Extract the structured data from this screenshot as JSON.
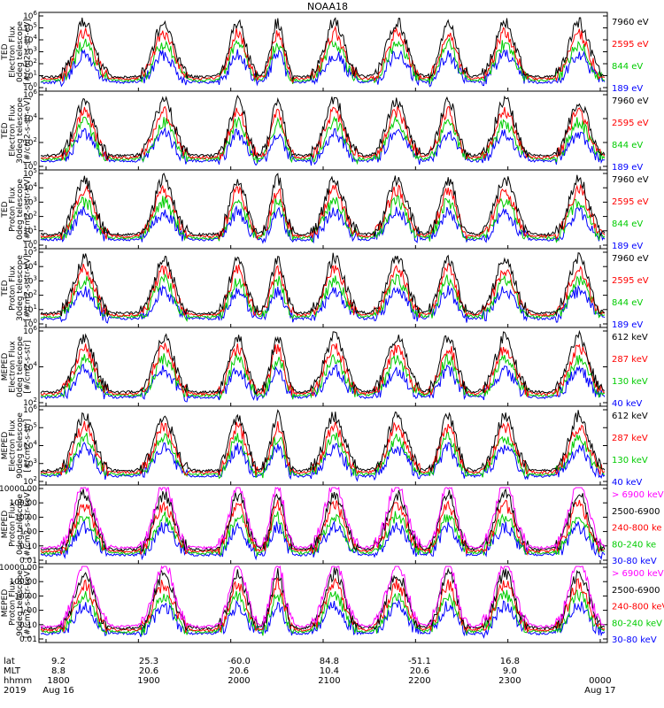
{
  "title": "NOAA18",
  "colors": {
    "black": "#000000",
    "red": "#ff0000",
    "green": "#00cc00",
    "blue": "#0000ff",
    "magenta": "#ff00ff"
  },
  "chart_data": [
    {
      "type": "line",
      "instrument": "TED",
      "ylabel": [
        "TED",
        "Electron Flux",
        "0deg telescope",
        "[#/cm2-s-str-eV]"
      ],
      "yscale": "log",
      "ylim": [
        1,
        1000000
      ],
      "yticks": [
        "10^0",
        "10^1",
        "10^2",
        "10^3",
        "10^4",
        "10^5",
        "10^6"
      ],
      "legend": [
        {
          "label": "7960 eV",
          "color": "black"
        },
        {
          "label": "2595 eV",
          "color": "red"
        },
        {
          "label": "844 eV",
          "color": "green"
        },
        {
          "label": "189 eV",
          "color": "blue"
        }
      ]
    },
    {
      "type": "line",
      "instrument": "TED",
      "ylabel": [
        "TED",
        "Electron Flux",
        "30deg telescope",
        "[#/cm2-s-str-eV]"
      ],
      "yscale": "log",
      "ylim": [
        1,
        1000000
      ],
      "yticks": [
        "10^0",
        "10^2",
        "10^4",
        "10^6"
      ],
      "legend": [
        {
          "label": "7960 eV",
          "color": "black"
        },
        {
          "label": "2595 eV",
          "color": "red"
        },
        {
          "label": "844 eV",
          "color": "green"
        },
        {
          "label": "189 eV",
          "color": "blue"
        }
      ]
    },
    {
      "type": "line",
      "instrument": "TED",
      "ylabel": [
        "TED",
        "Proton Flux",
        "0deg telescope",
        "[#/cm2-s-str-eV]"
      ],
      "yscale": "log",
      "ylim": [
        1,
        100000
      ],
      "yticks": [
        "10^0",
        "10^1",
        "10^2",
        "10^3",
        "10^4",
        "10^5"
      ],
      "legend": [
        {
          "label": "7960 eV",
          "color": "black"
        },
        {
          "label": "2595 eV",
          "color": "red"
        },
        {
          "label": "844 eV",
          "color": "green"
        },
        {
          "label": "189 eV",
          "color": "blue"
        }
      ]
    },
    {
      "type": "line",
      "instrument": "TED",
      "ylabel": [
        "TED",
        "Proton Flux",
        "30deg telescope",
        "[#/cm2-s-str-eV]"
      ],
      "yscale": "log",
      "ylim": [
        1,
        100000
      ],
      "yticks": [
        "10^0",
        "10^1",
        "10^2",
        "10^3",
        "10^4",
        "10^5"
      ],
      "legend": [
        {
          "label": "7960 eV",
          "color": "black"
        },
        {
          "label": "2595 eV",
          "color": "red"
        },
        {
          "label": "844 eV",
          "color": "green"
        },
        {
          "label": "189 eV",
          "color": "blue"
        }
      ]
    },
    {
      "type": "line",
      "instrument": "MEPED",
      "ylabel": [
        "MEPED",
        "Electron Flux",
        "0deg telescope",
        "[#/cm2-s-str]"
      ],
      "yscale": "log",
      "ylim": [
        100,
        1000000
      ],
      "yticks": [
        "10^2",
        "10^4",
        "10^6"
      ],
      "legend": [
        {
          "label": "612 keV",
          "color": "black"
        },
        {
          "label": "287 keV",
          "color": "red"
        },
        {
          "label": "130 keV",
          "color": "green"
        },
        {
          "label": "40 keV",
          "color": "blue"
        }
      ]
    },
    {
      "type": "line",
      "instrument": "MEPED",
      "ylabel": [
        "MEPED",
        "Electron Flux",
        "90deg telescope",
        "[#/cm2-s-str]"
      ],
      "yscale": "log",
      "ylim": [
        100,
        1000000
      ],
      "yticks": [
        "10^2",
        "10^3",
        "10^4",
        "10^5",
        "10^6"
      ],
      "legend": [
        {
          "label": "612 keV",
          "color": "black"
        },
        {
          "label": "287 keV",
          "color": "red"
        },
        {
          "label": "130 keV",
          "color": "green"
        },
        {
          "label": "40 keV",
          "color": "blue"
        }
      ]
    },
    {
      "type": "line",
      "instrument": "MEPED",
      "ylabel": [
        "MEPED",
        "Proton Flux",
        "0deg telescope",
        "[#/cm2-s-str-keV]"
      ],
      "yscale": "log",
      "ylim": [
        0.01,
        10000
      ],
      "yticks": [
        "10000.00",
        "100.00",
        "10.00",
        "1.00",
        "0.10",
        "0.01"
      ],
      "legend": [
        {
          "label": "> 6900 keV",
          "color": "magenta"
        },
        {
          "label": "2500-6900",
          "color": "black"
        },
        {
          "label": "240-800 ke",
          "color": "red"
        },
        {
          "label": "80-240 ke",
          "color": "green"
        },
        {
          "label": "30-80 keV",
          "color": "blue"
        }
      ]
    },
    {
      "type": "line",
      "instrument": "MEPED",
      "ylabel": [
        "MEPED",
        "Proton Flux",
        "90deg telescope",
        "[#/cm2-s-str-keV]"
      ],
      "yscale": "log",
      "ylim": [
        0.01,
        10000
      ],
      "yticks": [
        "10000.00",
        "100.00",
        "10.00",
        "1.00",
        "0.10",
        "0.01"
      ],
      "legend": [
        {
          "label": "> 6900 keV",
          "color": "magenta"
        },
        {
          "label": "2500-6900",
          "color": "black"
        },
        {
          "label": "240-800 keV",
          "color": "red"
        },
        {
          "label": "80-240 keV",
          "color": "green"
        },
        {
          "label": "30-80 keV",
          "color": "blue"
        }
      ]
    }
  ],
  "x_axis": {
    "rows": [
      {
        "name": "lat",
        "values": [
          "9.2",
          "25.3",
          "-60.0",
          "84.8",
          "-51.1",
          "16.8",
          ""
        ]
      },
      {
        "name": "MLT",
        "values": [
          "8.8",
          "20.6",
          "20.6",
          "10.4",
          "20.6",
          "9.0",
          ""
        ]
      },
      {
        "name": "hhmm",
        "values": [
          "1800",
          "1900",
          "2000",
          "2100",
          "2200",
          "2300",
          "0000"
        ]
      },
      {
        "name": "2019",
        "values": [
          "Aug 16",
          "",
          "",
          "",
          "",
          "",
          "Aug 17"
        ]
      }
    ]
  },
  "passes": [
    {
      "t": 0.08,
      "w": 0.03
    },
    {
      "t": 0.22,
      "w": 0.03
    },
    {
      "t": 0.35,
      "w": 0.025
    },
    {
      "t": 0.42,
      "w": 0.02
    },
    {
      "t": 0.52,
      "w": 0.03
    },
    {
      "t": 0.63,
      "w": 0.03
    },
    {
      "t": 0.72,
      "w": 0.025
    },
    {
      "t": 0.82,
      "w": 0.03
    },
    {
      "t": 0.95,
      "w": 0.03
    }
  ]
}
